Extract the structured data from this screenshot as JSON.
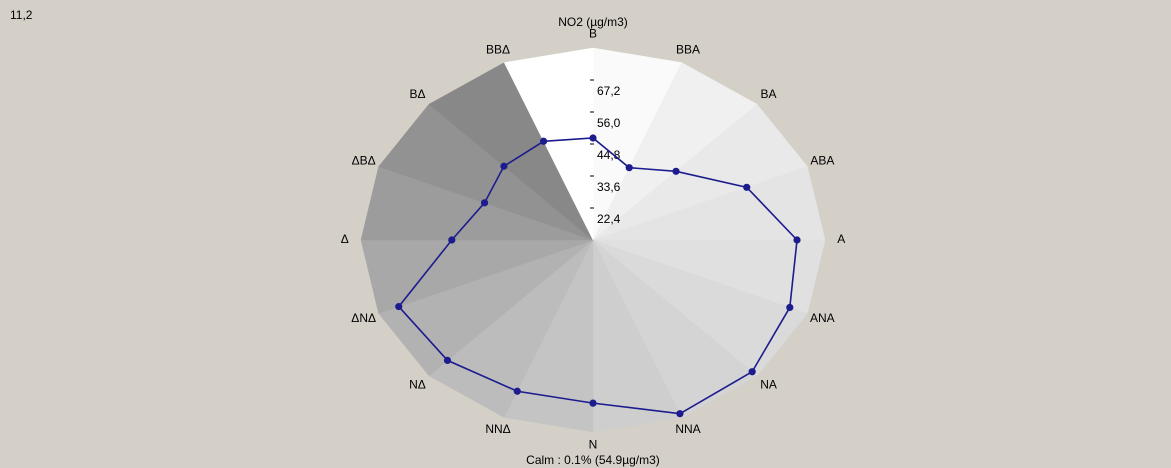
{
  "chart_data": {
    "type": "radar",
    "title": "NO2 (µg/m3)",
    "corner_label": "11,2",
    "footer": "Calm :   0.1% (54.9µg/m3)",
    "categories": [
      "B",
      "BBA",
      "BA",
      "ABA",
      "A",
      "ANA",
      "NA",
      "NNA",
      "N",
      "NNΔ",
      "NΔ",
      "ΔNΔ",
      "Δ",
      "ΔBΔ",
      "BΔ",
      "BBΔ"
    ],
    "series": [
      {
        "color": "#1c1c8e",
        "values": [
          46.9,
          38.6,
          45.2,
          59.4,
          70.3,
          72.9,
          76.4,
          77.0,
          68.3,
          68.5,
          70.8,
          72.1,
          52.1,
          45.2,
          47.7,
          48.6
        ]
      }
    ],
    "ylim": [
      11.2,
      78.4
    ],
    "yticks": [
      {
        "value": 22.4,
        "label": "22,4"
      },
      {
        "value": 33.6,
        "label": "33,6"
      },
      {
        "value": 44.8,
        "label": "44,8"
      },
      {
        "value": 56.0,
        "label": "56,0"
      },
      {
        "value": 67.2,
        "label": "67,2"
      }
    ],
    "sector_colors": [
      "#fafafa",
      "#f0f0f0",
      "#e9e9e9",
      "#e4e4e4",
      "#e0e0e0",
      "#dadada",
      "#d4d4d4",
      "#cecece",
      "#c4c4c4",
      "#bcbcbc",
      "#b2b2b2",
      "#a8a8a8",
      "#9c9c9c",
      "#929292",
      "#888888",
      "#ffffff"
    ]
  }
}
